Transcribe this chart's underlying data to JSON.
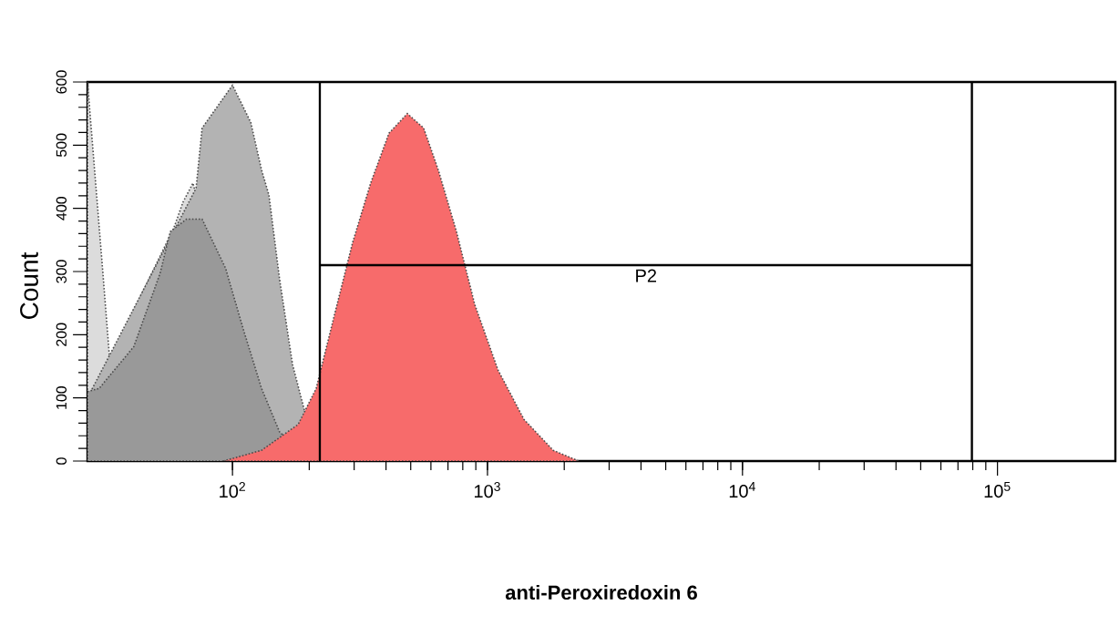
{
  "chart_data": {
    "type": "area",
    "xlabel": "anti-Peroxiredoxin 6",
    "ylabel": "Count",
    "log": "x",
    "xlim": [
      27,
      290000
    ],
    "ylim": [
      0,
      600
    ],
    "xticks": [
      {
        "value": 100,
        "label": "10$^{2}$"
      },
      {
        "value": 1000,
        "label": "10$^{3}$"
      },
      {
        "value": 10000,
        "label": "10$^{4}$"
      },
      {
        "value": 100000,
        "label": "10$^{5}$"
      }
    ],
    "yticks": [
      0,
      100,
      200,
      300,
      400,
      500,
      600
    ],
    "grid": false,
    "line_style": "dotted",
    "series": [
      {
        "color": "#dcdcdc",
        "x": [
          27,
          31,
          33,
          36,
          39,
          43,
          46,
          50,
          54,
          59,
          64,
          70,
          76,
          82,
          89,
          97,
          105,
          114,
          124,
          134
        ],
        "values": [
          600,
          300,
          160,
          null,
          null,
          null,
          null,
          null,
          null,
          370,
          410,
          440,
          null,
          null,
          null,
          null,
          null,
          null,
          null,
          0
        ]
      },
      {
        "color": "#b3b3b3",
        "x": [
          27,
          33,
          39,
          46,
          54,
          64,
          72,
          76,
          100,
          118,
          130,
          139,
          153,
          172,
          193,
          213,
          239
        ],
        "values": [
          100,
          null,
          null,
          null,
          null,
          null,
          432,
          527,
          595,
          536,
          461,
          421,
          288,
          153,
          75,
          null,
          0
        ]
      },
      {
        "color": "#999999",
        "x": [
          27,
          30,
          41,
          52,
          57,
          66,
          76,
          94,
          110,
          130,
          153,
          181,
          203
        ],
        "values": [
          110,
          115,
          181,
          297,
          363,
          383,
          383,
          305,
          210,
          115,
          46,
          null,
          0
        ]
      },
      {
        "color": "#f76b6b",
        "x": [
          92,
          130,
          181,
          213,
          251,
          296,
          349,
          411,
          485,
          562,
          641,
          756,
          891,
          1100,
          1390,
          1810,
          2280
        ],
        "values": [
          0,
          17,
          58,
          115,
          231,
          346,
          441,
          519,
          550,
          527,
          461,
          363,
          248,
          144,
          66,
          17,
          0
        ]
      },
      {
        "type": "line",
        "name": "P2",
        "color": "#000000",
        "line_style": "solid",
        "x": [
          220,
          79400
        ],
        "values": [
          310,
          310
        ]
      }
    ],
    "ref_lines": [
      {
        "axis": "x",
        "value": 220,
        "color": "#000000"
      },
      {
        "axis": "x",
        "value": 79400,
        "color": "#000000"
      }
    ]
  }
}
